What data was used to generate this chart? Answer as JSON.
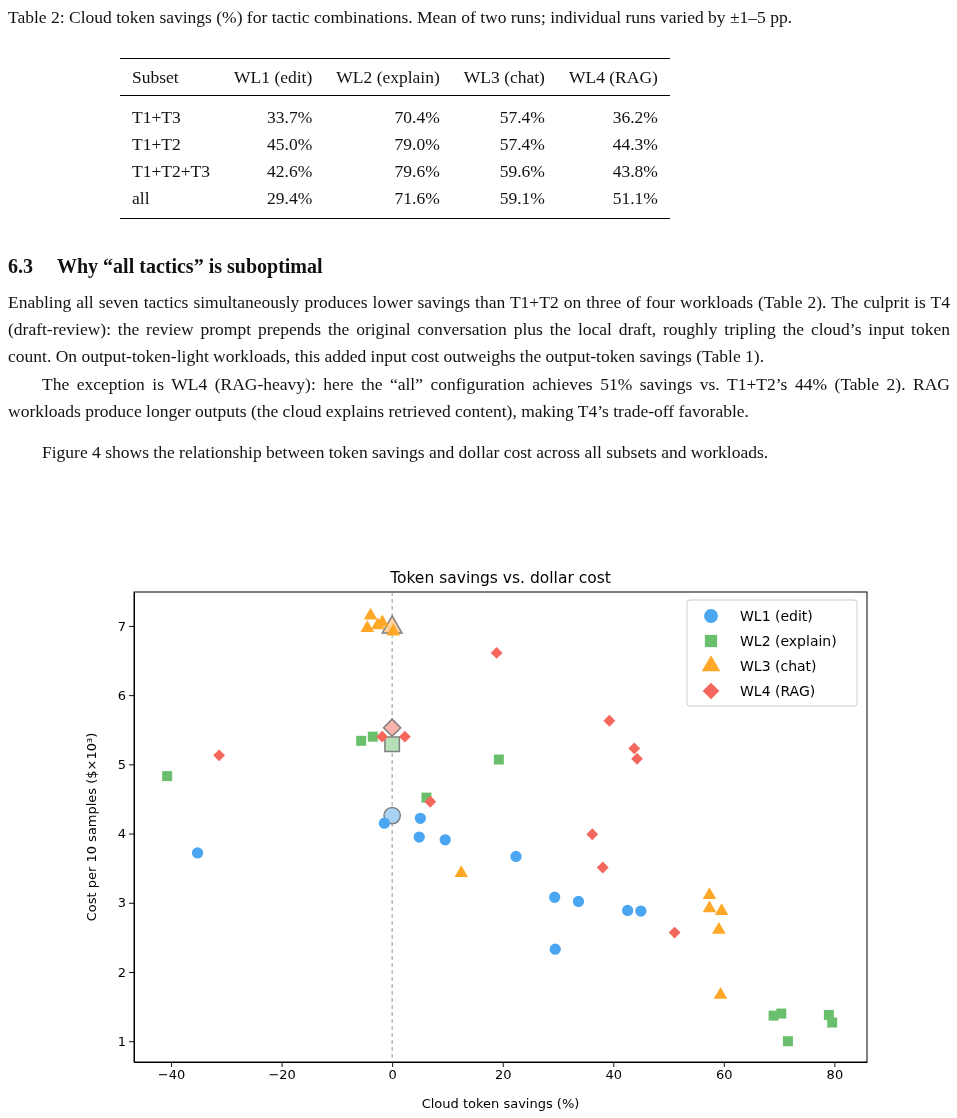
{
  "chart_data": {
    "type": "scatter",
    "title": "Token savings vs. dollar cost",
    "xlabel": "Cloud token savings (%)",
    "ylabel": "Cost per 10 samples ($×10³)",
    "annotations": [
      "Table 2: Cloud token savings (%) for tactic combinations. Mean of two runs; individual runs varied by ±1–5 pp.",
      "Subset",
      "WL1 (edit)",
      "WL2 (explain)",
      "WL3 (chat)",
      "WL4 (RAG)",
      "T1+T3",
      "33.7%",
      "70.4%",
      "57.4%",
      "36.2%",
      "T1+T2",
      "45.0%",
      "79.0%",
      "57.4%",
      "44.3%",
      "T1+T2+T3",
      "42.6%",
      "79.6%",
      "59.6%",
      "43.8%",
      "all",
      "29.4%",
      "71.6%",
      "59.1%",
      "51.1%",
      "6.3",
      "Why “all tactics” is suboptimal",
      "Enabling all seven tactics simultaneously produces lower savings than T1+T2 on three of four workloads (Table 2). The culprit is T4 (draft-review): the review prompt prepends the original conversation plus the local draft, roughly tripling the cloud’s input token count. On output-token-light workloads, this added input cost outweighs the output-token savings (Table 1).",
      "The exception is WL4 (RAG-heavy): here the “all” configuration achieves 51% savings vs. T1+T2’s 44% (Table 2). RAG workloads produce longer outputs (the cloud explains retrieved content), making T4’s trade-off favorable.",
      "Figure 4 shows the relationship between token savings and dollar cost across all subsets and workloads."
    ],
    "series": [
      {
        "name": "WL1 (edit)",
        "color": "#4aa6f0",
        "marker": "circle",
        "x": [
          -35.2,
          -1.4,
          5.1,
          4.9,
          9.6,
          22.4,
          29.4,
          33.7,
          42.6,
          45.0,
          29.5
        ],
        "values": [
          3.72,
          4.15,
          4.22,
          3.95,
          3.91,
          3.67,
          3.08,
          3.02,
          2.89,
          2.88,
          2.33
        ]
      },
      {
        "name": "WL2 (explain)",
        "color": "#6abf6d",
        "marker": "square",
        "x": [
          -40.7,
          -5.6,
          -3.5,
          19.3,
          6.2,
          69.0,
          70.4,
          79.0,
          79.6,
          71.6
        ],
        "values": [
          4.83,
          5.34,
          5.4,
          5.07,
          4.52,
          1.37,
          1.4,
          1.38,
          1.27,
          1.0
        ]
      },
      {
        "name": "WL3 (chat)",
        "color": "#ffa726",
        "marker": "triangle",
        "x": [
          -3.9,
          -4.5,
          -2.6,
          -1.8,
          0.2,
          12.5,
          57.4,
          57.4,
          59.6,
          59.1,
          59.4
        ],
        "values": [
          7.15,
          6.97,
          7.01,
          7.05,
          6.92,
          3.43,
          3.11,
          2.92,
          2.88,
          2.61,
          1.67
        ]
      },
      {
        "name": "WL4 (RAG)",
        "color": "#f5675d",
        "marker": "diamond",
        "x": [
          -31.3,
          18.9,
          -1.8,
          2.3,
          6.9,
          39.3,
          43.8,
          44.3,
          36.2,
          38.1,
          51.1
        ],
        "values": [
          5.13,
          6.61,
          5.4,
          5.4,
          4.46,
          5.63,
          5.23,
          5.08,
          3.99,
          3.51,
          2.57
        ]
      },
      {
        "color": "#a9d3f5",
        "marker": "circle",
        "x": [
          0
        ],
        "values": [
          4.26
        ]
      },
      {
        "color": "#b5dfb6",
        "marker": "square",
        "x": [
          0
        ],
        "values": [
          5.29
        ]
      },
      {
        "color": "#ffd199",
        "marker": "triangle",
        "x": [
          0
        ],
        "values": [
          6.98
        ]
      },
      {
        "color": "#f9b3ae",
        "marker": "diamond",
        "x": [
          0
        ],
        "values": [
          5.53
        ]
      }
    ],
    "xlim": [
      -46.7,
      85.9
    ],
    "ylim": [
      0.7,
      7.49
    ],
    "xticks": [
      {
        "value": -40,
        "label": "−40"
      },
      {
        "value": -20,
        "label": "−20"
      },
      0,
      20,
      40,
      60,
      80
    ],
    "yticks": [
      1,
      2,
      3,
      4,
      5,
      6,
      7
    ],
    "ref_lines": [
      {
        "axis": "x",
        "value": 0,
        "color": "#808080",
        "line_style": "dashed"
      }
    ],
    "grid": false,
    "legend": "top right"
  }
}
